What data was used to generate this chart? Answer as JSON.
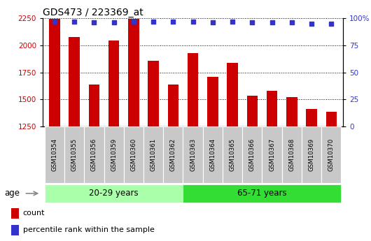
{
  "title": "GDS473 / 223369_at",
  "categories": [
    "GSM10354",
    "GSM10355",
    "GSM10356",
    "GSM10359",
    "GSM10360",
    "GSM10361",
    "GSM10362",
    "GSM10363",
    "GSM10364",
    "GSM10365",
    "GSM10366",
    "GSM10367",
    "GSM10368",
    "GSM10369",
    "GSM10370"
  ],
  "bar_values": [
    2240,
    2075,
    1640,
    2040,
    2240,
    1855,
    1640,
    1930,
    1705,
    1840,
    1535,
    1580,
    1520,
    1410,
    1385
  ],
  "percentile_values": [
    97,
    97,
    96,
    96,
    97,
    97,
    97,
    97,
    96,
    97,
    96,
    96,
    96,
    95,
    95
  ],
  "bar_color": "#cc0000",
  "dot_color": "#3333cc",
  "ylim_left": [
    1250,
    2250
  ],
  "ylim_right": [
    0,
    100
  ],
  "yticks_left": [
    1250,
    1500,
    1750,
    2000,
    2250
  ],
  "yticks_right": [
    0,
    25,
    50,
    75,
    100
  ],
  "ytick_labels_right": [
    "0",
    "25",
    "50",
    "75",
    "100%"
  ],
  "group1_label": "20-29 years",
  "group2_label": "65-71 years",
  "group1_count": 7,
  "group2_count": 8,
  "age_label": "age",
  "legend_count_label": "count",
  "legend_percentile_label": "percentile rank within the sample",
  "group1_color": "#aaffaa",
  "group2_color": "#33dd33",
  "xticklabel_bg": "#c8c8c8",
  "title_fontsize": 10,
  "tick_fontsize": 7.5,
  "bar_width": 0.55
}
